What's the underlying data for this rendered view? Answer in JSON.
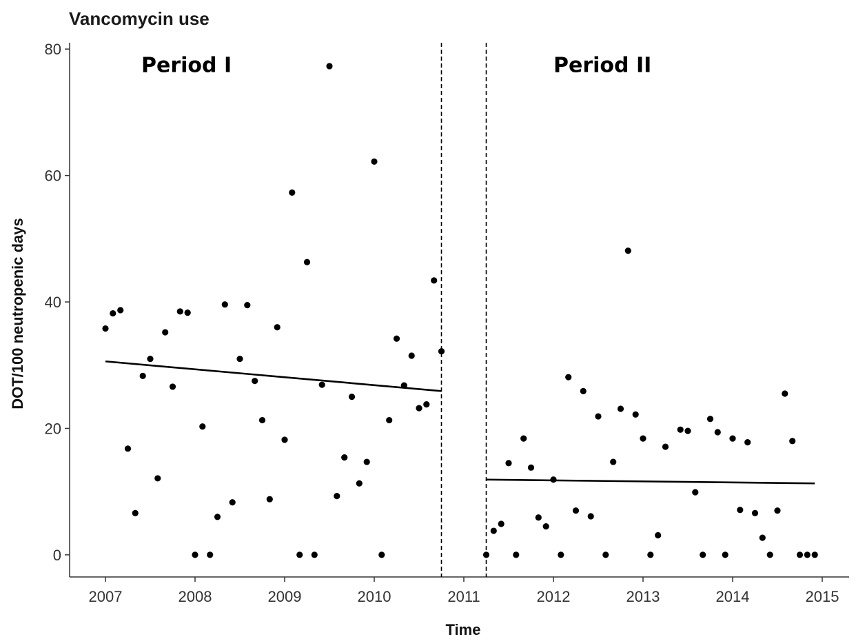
{
  "chart_data": {
    "type": "scatter",
    "title": "Vancomycin use",
    "xlabel": "Time",
    "ylabel": "DOT/100 neutropenic days",
    "xlim": [
      2006.6,
      2015.3
    ],
    "ylim": [
      -3.5,
      81
    ],
    "x_ticks": [
      2007,
      2008,
      2009,
      2010,
      2011,
      2012,
      2013,
      2014,
      2015
    ],
    "y_ticks": [
      0,
      20,
      40,
      60,
      80
    ],
    "grid": false,
    "legend": "none",
    "annotations": [
      {
        "text": "Period I",
        "x": 2007.4,
        "y": 77
      },
      {
        "text": "Period II",
        "x": 2012.0,
        "y": 77
      }
    ],
    "vlines": [
      2010.75,
      2011.25
    ],
    "points": [
      {
        "x": 2007.0,
        "y": 35.8
      },
      {
        "x": 2007.083,
        "y": 38.2
      },
      {
        "x": 2007.167,
        "y": 38.7
      },
      {
        "x": 2007.25,
        "y": 16.8
      },
      {
        "x": 2007.333,
        "y": 6.6
      },
      {
        "x": 2007.417,
        "y": 28.3
      },
      {
        "x": 2007.5,
        "y": 31.0
      },
      {
        "x": 2007.583,
        "y": 12.1
      },
      {
        "x": 2007.667,
        "y": 35.2
      },
      {
        "x": 2007.75,
        "y": 26.6
      },
      {
        "x": 2007.833,
        "y": 38.5
      },
      {
        "x": 2007.917,
        "y": 38.3
      },
      {
        "x": 2008.0,
        "y": 0
      },
      {
        "x": 2008.083,
        "y": 20.3
      },
      {
        "x": 2008.167,
        "y": 0
      },
      {
        "x": 2008.25,
        "y": 6.0
      },
      {
        "x": 2008.333,
        "y": 39.6
      },
      {
        "x": 2008.417,
        "y": 8.3
      },
      {
        "x": 2008.5,
        "y": 31.0
      },
      {
        "x": 2008.583,
        "y": 39.5
      },
      {
        "x": 2008.667,
        "y": 27.5
      },
      {
        "x": 2008.75,
        "y": 21.3
      },
      {
        "x": 2008.833,
        "y": 8.8
      },
      {
        "x": 2008.917,
        "y": 36.0
      },
      {
        "x": 2009.0,
        "y": 18.2
      },
      {
        "x": 2009.083,
        "y": 57.3
      },
      {
        "x": 2009.167,
        "y": 0
      },
      {
        "x": 2009.25,
        "y": 46.3
      },
      {
        "x": 2009.333,
        "y": 0
      },
      {
        "x": 2009.417,
        "y": 26.9
      },
      {
        "x": 2009.5,
        "y": 77.3
      },
      {
        "x": 2009.583,
        "y": 9.3
      },
      {
        "x": 2009.667,
        "y": 15.4
      },
      {
        "x": 2009.75,
        "y": 25.0
      },
      {
        "x": 2009.833,
        "y": 11.3
      },
      {
        "x": 2009.917,
        "y": 14.7
      },
      {
        "x": 2010.0,
        "y": 62.2
      },
      {
        "x": 2010.083,
        "y": 0
      },
      {
        "x": 2010.167,
        "y": 21.3
      },
      {
        "x": 2010.25,
        "y": 34.2
      },
      {
        "x": 2010.333,
        "y": 26.8
      },
      {
        "x": 2010.417,
        "y": 31.5
      },
      {
        "x": 2010.5,
        "y": 23.2
      },
      {
        "x": 2010.583,
        "y": 23.8
      },
      {
        "x": 2010.667,
        "y": 43.4
      },
      {
        "x": 2010.75,
        "y": 32.2
      },
      {
        "x": 2011.25,
        "y": 0
      },
      {
        "x": 2011.333,
        "y": 3.8
      },
      {
        "x": 2011.417,
        "y": 4.9
      },
      {
        "x": 2011.5,
        "y": 14.5
      },
      {
        "x": 2011.583,
        "y": 0
      },
      {
        "x": 2011.667,
        "y": 18.4
      },
      {
        "x": 2011.75,
        "y": 13.8
      },
      {
        "x": 2011.833,
        "y": 5.9
      },
      {
        "x": 2011.917,
        "y": 4.5
      },
      {
        "x": 2012.0,
        "y": 11.9
      },
      {
        "x": 2012.083,
        "y": 0
      },
      {
        "x": 2012.167,
        "y": 28.1
      },
      {
        "x": 2012.25,
        "y": 7.0
      },
      {
        "x": 2012.333,
        "y": 25.9
      },
      {
        "x": 2012.417,
        "y": 6.1
      },
      {
        "x": 2012.5,
        "y": 21.9
      },
      {
        "x": 2012.583,
        "y": 0
      },
      {
        "x": 2012.667,
        "y": 14.7
      },
      {
        "x": 2012.75,
        "y": 23.1
      },
      {
        "x": 2012.833,
        "y": 48.1
      },
      {
        "x": 2012.917,
        "y": 22.2
      },
      {
        "x": 2013.0,
        "y": 18.4
      },
      {
        "x": 2013.083,
        "y": 0
      },
      {
        "x": 2013.167,
        "y": 3.1
      },
      {
        "x": 2013.25,
        "y": 17.1
      },
      {
        "x": 2013.417,
        "y": 19.8
      },
      {
        "x": 2013.5,
        "y": 19.6
      },
      {
        "x": 2013.583,
        "y": 9.9
      },
      {
        "x": 2013.667,
        "y": 0
      },
      {
        "x": 2013.75,
        "y": 21.5
      },
      {
        "x": 2013.833,
        "y": 19.4
      },
      {
        "x": 2013.917,
        "y": 0
      },
      {
        "x": 2014.0,
        "y": 18.4
      },
      {
        "x": 2014.083,
        "y": 7.1
      },
      {
        "x": 2014.167,
        "y": 17.8
      },
      {
        "x": 2014.25,
        "y": 6.6
      },
      {
        "x": 2014.333,
        "y": 2.7
      },
      {
        "x": 2014.417,
        "y": 0
      },
      {
        "x": 2014.5,
        "y": 7.0
      },
      {
        "x": 2014.583,
        "y": 25.5
      },
      {
        "x": 2014.667,
        "y": 18.0
      },
      {
        "x": 2014.75,
        "y": 0
      },
      {
        "x": 2014.833,
        "y": 0
      },
      {
        "x": 2014.917,
        "y": 0
      }
    ],
    "trend_lines": [
      {
        "x": [
          2007.0,
          2010.75
        ],
        "y": [
          30.6,
          25.9
        ]
      },
      {
        "x": [
          2011.25,
          2014.917
        ],
        "y": [
          11.9,
          11.3
        ]
      }
    ]
  }
}
